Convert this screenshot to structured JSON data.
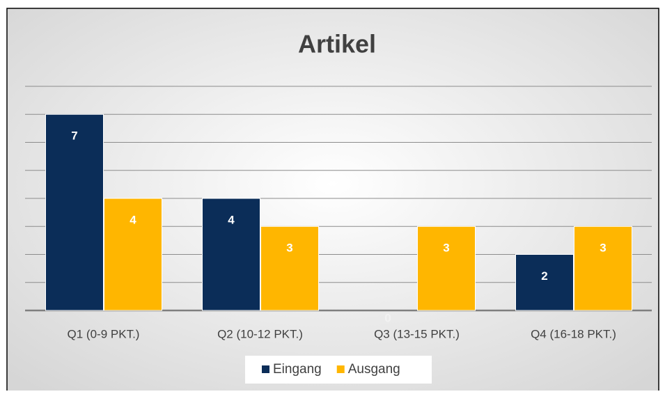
{
  "chart_data": {
    "type": "bar",
    "title": "Artikel",
    "categories": [
      "Q1 (0-9 PKT.)",
      "Q2 (10-12 PKT.)",
      "Q3 (13-15 PKT.)",
      "Q4 (16-18 PKT.)"
    ],
    "series": [
      {
        "name": "Eingang",
        "color": "#0b2d58",
        "values": [
          7,
          4,
          0,
          2
        ]
      },
      {
        "name": "Ausgang",
        "color": "#ffb600",
        "values": [
          4,
          3,
          3,
          3
        ]
      }
    ],
    "ylim": [
      0,
      8
    ],
    "yticks": [
      0,
      1,
      2,
      3,
      4,
      5,
      6,
      7,
      8
    ],
    "grid": true,
    "legend": "bottom"
  }
}
